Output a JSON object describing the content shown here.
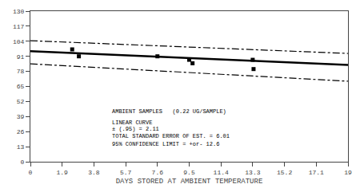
{
  "chart_data": {
    "type": "line",
    "xlabel": "DAYS STORED AT AMBIENT TEMPERATURE",
    "xlim": [
      0.0,
      19.0
    ],
    "ylim": [
      0,
      130
    ],
    "xticks": [
      0,
      1.9,
      3.8,
      5.7,
      7.6,
      9.5,
      11.4,
      13.3,
      15.2,
      17.1,
      19
    ],
    "yticks": [
      0,
      13,
      26,
      39,
      52,
      65,
      78,
      91,
      104,
      117,
      130
    ],
    "grid": false,
    "color": "#000000",
    "series": [
      {
        "type": "line",
        "line_style": "solid",
        "x": [
          0.0,
          19.0
        ],
        "values": [
          95.5,
          83.5
        ]
      },
      {
        "type": "line",
        "line_style": "dashdot",
        "x": [
          0.0,
          19.0
        ],
        "values": [
          104.5,
          93.5
        ]
      },
      {
        "type": "line",
        "line_style": "dashdot",
        "x": [
          0.0,
          19.0
        ],
        "values": [
          84.5,
          69.5
        ]
      },
      {
        "type": "scatter",
        "marker": "square",
        "x": [
          2.5,
          2.9,
          7.6,
          9.5,
          9.7,
          13.3,
          13.35
        ],
        "values": [
          97,
          91,
          91,
          88,
          85,
          88,
          80
        ]
      }
    ],
    "annotations": [
      {
        "text": "AMBIENT SAMPLES   (0.22 UG/SAMPLE)",
        "x": 4.8,
        "y": 43
      },
      {
        "text": "LINEAR CURVE",
        "x": 4.8,
        "y": 34
      },
      {
        "text": "± (.95) = 2.11",
        "x": 4.8,
        "y": 28
      },
      {
        "text": "TOTAL STANDARD ERROR OF EST. = 6.01",
        "x": 4.8,
        "y": 22
      },
      {
        "text": "95% CONFIDENCE LIMIT = +or- 12.6",
        "x": 4.8,
        "y": 15
      }
    ]
  }
}
